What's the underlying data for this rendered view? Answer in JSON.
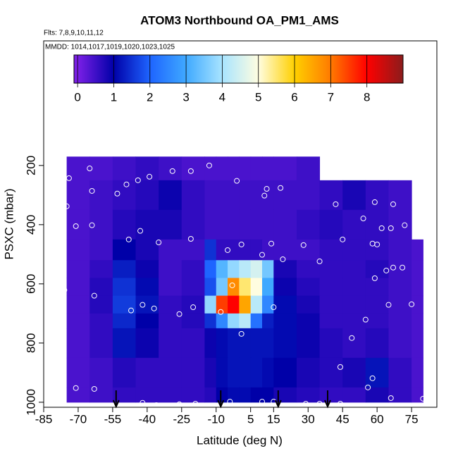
{
  "chart_data": {
    "type": "heatmap",
    "title": "ATOM3 Northbound OA_PM1_AMS",
    "subtitle": "Flts: 7,8,9,10,11,12",
    "annotation": "MMDD: 1014,1017,1019,1020,1023,1025",
    "x_label": "Latitude (deg N)",
    "y_label": "PSXC (mbar)",
    "xlim": [
      -85,
      86
    ],
    "xticks": [
      -85,
      -70,
      -55,
      -40,
      -25,
      -10,
      5,
      15,
      30,
      45,
      60,
      75
    ],
    "ylim": [
      1017,
      -221
    ],
    "yticks": [
      200,
      400,
      600,
      800,
      1000
    ],
    "clim": [
      -0.1,
      9
    ],
    "cticks": [
      0,
      1,
      2,
      3,
      4,
      5,
      6,
      7,
      8
    ],
    "colorscale": [
      [
        0,
        "#7b1fe6"
      ],
      [
        1,
        "#0000a8"
      ],
      [
        2,
        "#1e64ff"
      ],
      [
        3,
        "#3fa9ff"
      ],
      [
        4,
        "#a8e4ff"
      ],
      [
        5,
        "#fffde0"
      ],
      [
        6,
        "#ffd000"
      ],
      [
        7,
        "#ff7a00"
      ],
      [
        8,
        "#ff0000"
      ],
      [
        9,
        "#8b1c1c"
      ]
    ],
    "x_edges": [
      -75,
      -65,
      -55,
      -45,
      -35,
      -25,
      -15,
      -10,
      -5,
      0,
      5,
      10,
      15,
      25,
      35,
      45,
      55,
      65,
      75,
      80
    ],
    "y_edges": [
      170,
      250,
      350,
      450,
      520,
      580,
      640,
      700,
      750,
      850,
      950,
      1000
    ],
    "z": [
      [
        0.4,
        0.4,
        0.5,
        0.6,
        0.5,
        0.4,
        0.4,
        0.4,
        0.4,
        0.4,
        0.4,
        0.4,
        0.4,
        0.5,
        null,
        null,
        null,
        null,
        null
      ],
      [
        0.4,
        0.5,
        0.6,
        0.7,
        0.9,
        0.6,
        0.5,
        0.5,
        0.5,
        0.5,
        0.5,
        0.5,
        0.5,
        0.5,
        0.6,
        0.8,
        0.6,
        0.5,
        null
      ],
      [
        0.4,
        0.5,
        0.7,
        0.8,
        0.8,
        0.6,
        0.5,
        0.5,
        0.5,
        0.5,
        0.5,
        0.5,
        0.5,
        0.6,
        0.7,
        0.6,
        0.6,
        0.5,
        null
      ],
      [
        0.4,
        0.5,
        1.0,
        0.8,
        0.5,
        0.5,
        1.5,
        0.6,
        0.6,
        0.6,
        0.6,
        0.5,
        0.5,
        0.5,
        0.6,
        0.6,
        0.6,
        0.5,
        0.4
      ],
      [
        0.4,
        0.6,
        1.3,
        0.9,
        0.5,
        0.6,
        2.0,
        3.2,
        3.8,
        4.2,
        4.5,
        3.5,
        0.8,
        0.6,
        0.6,
        0.6,
        0.7,
        0.5,
        0.4
      ],
      [
        0.4,
        0.7,
        1.5,
        1.1,
        0.5,
        0.6,
        1.8,
        3.5,
        6.8,
        5.5,
        5.0,
        3.0,
        0.9,
        0.7,
        0.6,
        0.6,
        0.6,
        0.5,
        0.4
      ],
      [
        0.4,
        0.7,
        1.6,
        1.2,
        0.6,
        0.7,
        3.8,
        7.5,
        8.0,
        6.5,
        4.2,
        2.5,
        1.1,
        0.8,
        0.6,
        0.6,
        0.6,
        0.5,
        0.4
      ],
      [
        0.4,
        0.6,
        1.4,
        1.0,
        0.6,
        0.7,
        1.5,
        2.5,
        3.8,
        4.2,
        2.2,
        1.3,
        1.1,
        0.9,
        0.6,
        0.6,
        0.6,
        0.5,
        0.4
      ],
      [
        0.4,
        0.6,
        1.2,
        0.9,
        0.6,
        0.6,
        0.9,
        1.1,
        1.2,
        1.2,
        1.2,
        1.2,
        1.1,
        0.9,
        0.7,
        0.6,
        0.7,
        0.5,
        0.4
      ],
      [
        0.4,
        0.5,
        0.7,
        0.6,
        0.6,
        0.6,
        0.8,
        1.1,
        1.2,
        1.2,
        1.2,
        1.1,
        1.0,
        0.8,
        0.7,
        0.8,
        1.2,
        0.6,
        0.4
      ],
      [
        0.4,
        0.5,
        0.6,
        0.6,
        0.6,
        0.6,
        0.7,
        1.0,
        1.1,
        1.1,
        1.0,
        1.0,
        0.8,
        0.7,
        0.6,
        0.6,
        0.8,
        0.6,
        0.4
      ]
    ],
    "points": {
      "x": [
        -74,
        -65,
        -64,
        -53,
        -49,
        -44,
        -39,
        -29,
        -21,
        -13,
        -1,
        12,
        11,
        18,
        42,
        59,
        67,
        -75,
        -71,
        -64,
        -43,
        -48,
        -35,
        -21,
        -5,
        1,
        10,
        14,
        28,
        35,
        19,
        45,
        54,
        58,
        60,
        62,
        66,
        72,
        64,
        67,
        71,
        59,
        -76,
        -63,
        -42,
        -47,
        -37,
        -20,
        -26,
        -8,
        -3,
        15,
        1,
        55,
        65,
        75,
        49,
        44,
        58,
        56,
        -77,
        -71,
        -63,
        -42,
        -36,
        -26,
        -19,
        -4,
        10,
        15,
        29,
        35,
        44,
        66,
        80
      ],
      "y": [
        243,
        210,
        286,
        295,
        264,
        250,
        238,
        219,
        219,
        200,
        252,
        279,
        302,
        276,
        331,
        324,
        331,
        338,
        405,
        402,
        421,
        450,
        460,
        448,
        486,
        467,
        502,
        464,
        469,
        524,
        517,
        450,
        379,
        464,
        467,
        412,
        412,
        402,
        555,
        545,
        545,
        581,
        621,
        640,
        671,
        690,
        683,
        679,
        702,
        695,
        605,
        679,
        769,
        721,
        671,
        669,
        783,
        881,
        919,
        950,
        962,
        952,
        955,
        1002,
        1010,
        1007,
        1005,
        998,
        998,
        998,
        1005,
        1005,
        1005,
        986,
        988
      ]
    },
    "arrows_x": [
      -53.5,
      -8,
      17,
      38.5
    ]
  }
}
